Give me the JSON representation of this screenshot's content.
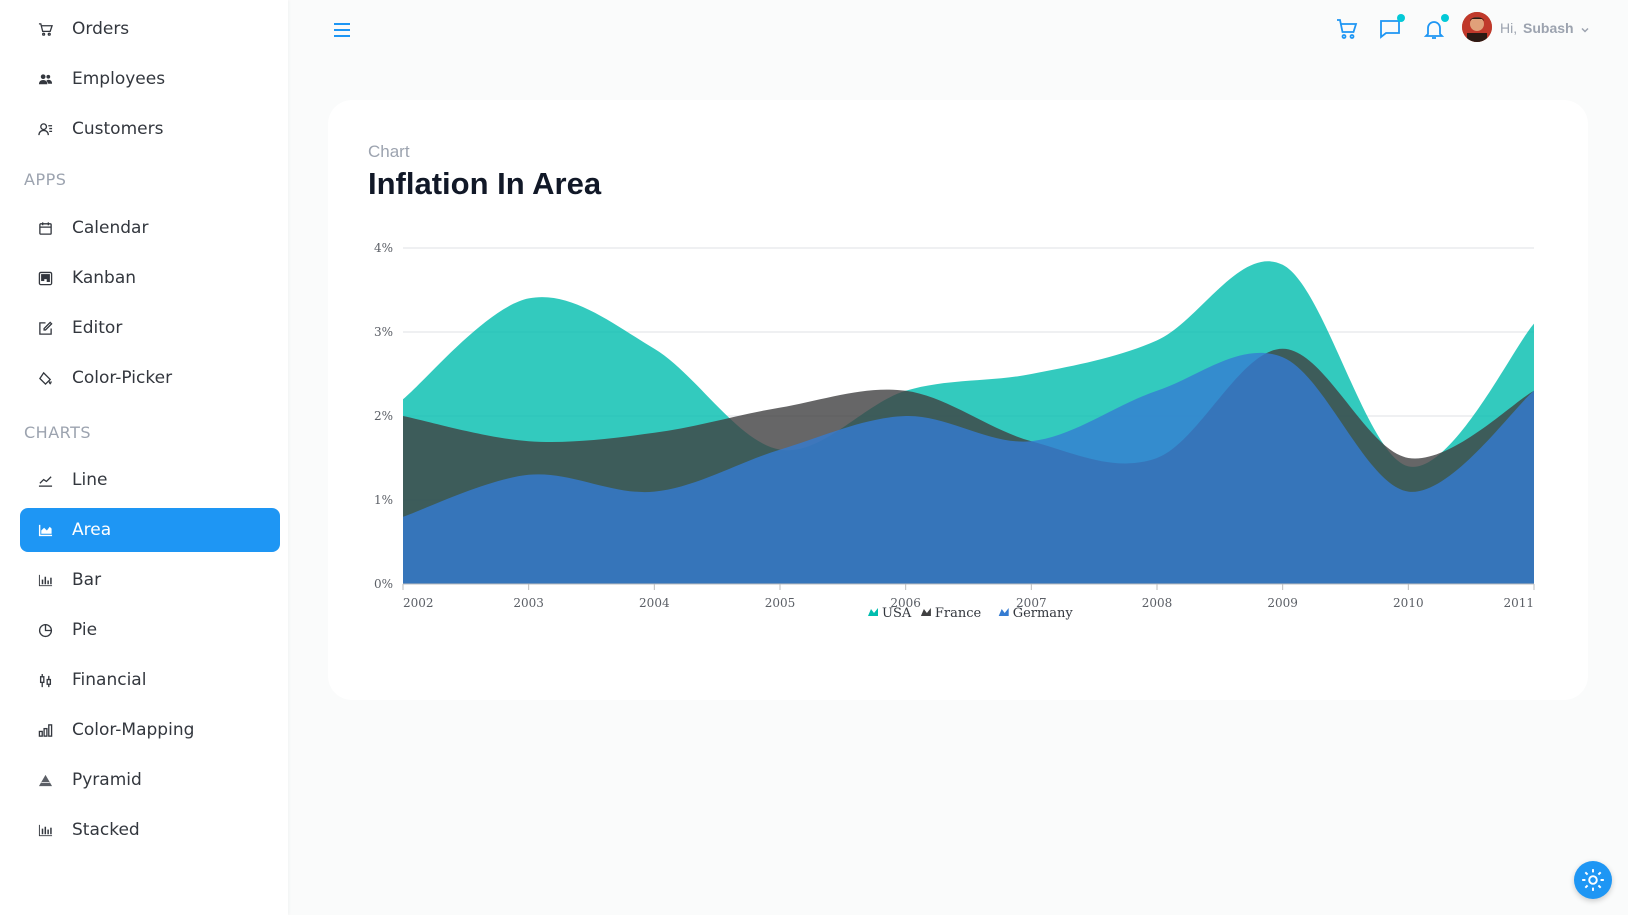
{
  "sidebar": {
    "top_items": [
      {
        "label": "Orders",
        "icon": "cart-icon"
      },
      {
        "label": "Employees",
        "icon": "employees-icon"
      },
      {
        "label": "Customers",
        "icon": "customers-icon"
      }
    ],
    "apps_title": "APPS",
    "apps_items": [
      {
        "label": "Calendar",
        "icon": "calendar-icon"
      },
      {
        "label": "Kanban",
        "icon": "kanban-icon"
      },
      {
        "label": "Editor",
        "icon": "edit-icon"
      },
      {
        "label": "Color-Picker",
        "icon": "paint-bucket-icon"
      }
    ],
    "charts_title": "CHARTS",
    "charts_items": [
      {
        "label": "Line",
        "icon": "line-chart-icon"
      },
      {
        "label": "Area",
        "icon": "area-chart-icon",
        "active": true
      },
      {
        "label": "Bar",
        "icon": "bar-chart-icon"
      },
      {
        "label": "Pie",
        "icon": "pie-chart-icon"
      },
      {
        "label": "Financial",
        "icon": "candlestick-icon"
      },
      {
        "label": "Color-Mapping",
        "icon": "color-mapping-icon"
      },
      {
        "label": "Pyramid",
        "icon": "pyramid-icon"
      },
      {
        "label": "Stacked",
        "icon": "stacked-chart-icon"
      }
    ]
  },
  "header": {
    "greeting": "Hi,",
    "user_name": "Subash",
    "icons": [
      "menu-icon",
      "cart-icon",
      "chat-icon",
      "bell-icon",
      "avatar",
      "chevron-down-icon"
    ]
  },
  "card": {
    "subtitle": "Chart",
    "title": "Inflation In Area"
  },
  "colors": {
    "accent": "#1e96f4",
    "notification_dot": "#03c9d7",
    "usa": "#00bdae",
    "france": "#404041",
    "germany": "#357cd2"
  },
  "chart_data": {
    "type": "area",
    "x": [
      "2002",
      "2003",
      "2004",
      "2005",
      "2006",
      "2007",
      "2008",
      "2009",
      "2010",
      "2011"
    ],
    "ylim": [
      0,
      4
    ],
    "y_ticks": [
      "0%",
      "1%",
      "2%",
      "3%",
      "4%"
    ],
    "grid": true,
    "legend_position": "bottom-center",
    "series": [
      {
        "name": "USA",
        "values": [
          2.2,
          3.4,
          2.8,
          1.6,
          2.3,
          2.5,
          2.9,
          3.8,
          1.4,
          3.1
        ],
        "color": "#00bdae"
      },
      {
        "name": "France",
        "values": [
          2.0,
          1.7,
          1.8,
          2.1,
          2.3,
          1.7,
          1.5,
          2.8,
          1.5,
          2.3
        ],
        "color": "#404041"
      },
      {
        "name": "Germany",
        "values": [
          0.8,
          1.3,
          1.1,
          1.6,
          2.0,
          1.7,
          2.3,
          2.7,
          1.1,
          2.3
        ],
        "color": "#357cd2"
      }
    ]
  }
}
